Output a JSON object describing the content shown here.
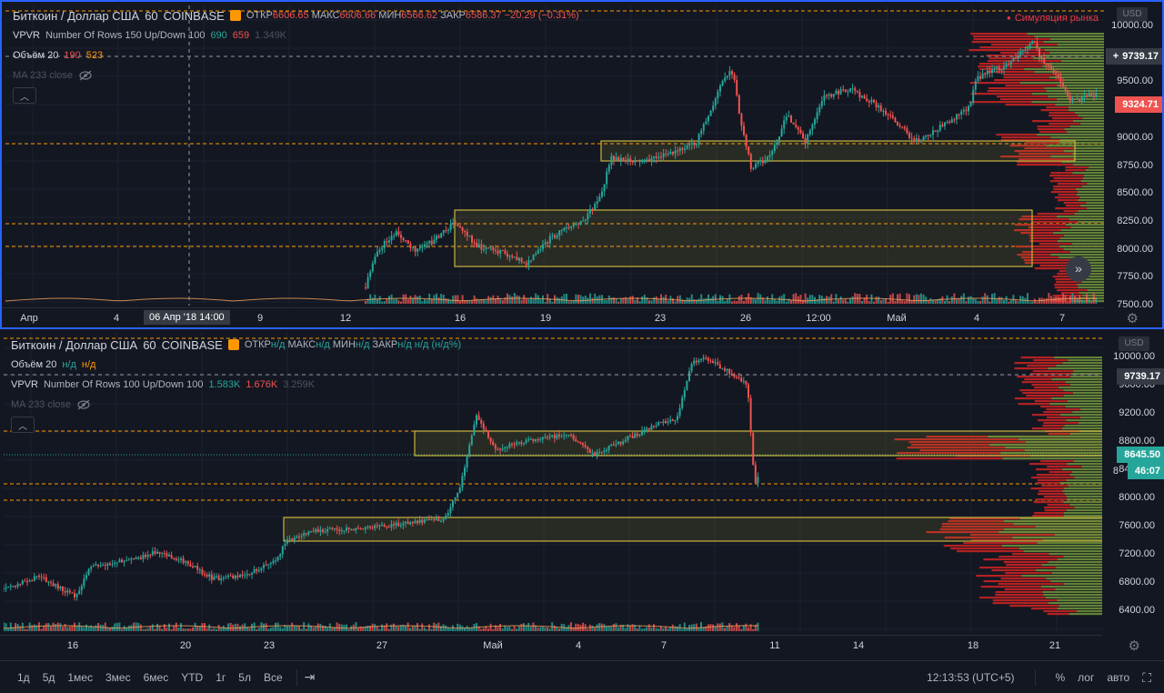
{
  "colors": {
    "bg": "#131722",
    "up": "#26a69a",
    "down": "#ef5350",
    "vp_up": "#6b8e3a",
    "vp_down": "#b22222",
    "box": "#c9b53c",
    "dashed": "#ff9800",
    "grid": "#1e222d",
    "accent": "#2962ff"
  },
  "pane1": {
    "symbol": "Биткоин / Доллар США",
    "interval": "60",
    "exchange": "COINBASE",
    "ohlc": {
      "o_label": "ОТКР",
      "o": "6606.65",
      "h_label": "МАКС",
      "h": "6606.66",
      "l_label": "МИН",
      "l": "6566.62",
      "c_label": "ЗАКР",
      "c": "6586.37",
      "change": "−20.29 (−0.31%)"
    },
    "sim_label": "Симуляция рынка",
    "vpvr": {
      "name": "VPVR",
      "params": "Number Of Rows 150 Up/Down 100",
      "up": "690",
      "down": "659",
      "total": "1.349K"
    },
    "volume": {
      "name": "Объём 20",
      "v1": "190",
      "v2": "523"
    },
    "ma": {
      "name": "MA 233 close"
    },
    "currency": "USD",
    "price_ticks": [
      "10000.00",
      "9750.00",
      "9500.00",
      "9250.00",
      "9000.00",
      "8750.00",
      "8500.00",
      "8250.00",
      "8000.00",
      "7750.00",
      "7500.00"
    ],
    "tags": {
      "crosshair": "9739.17",
      "last": "9324.71"
    },
    "time_labels": [
      "Апр",
      "4",
      "9",
      "12",
      "16",
      "19",
      "23",
      "26",
      "12:00",
      "Май",
      "4",
      "7"
    ],
    "crosshair_time": "06 Апр '18   14:00",
    "icons": {
      "scroll": "double-chevron-right-icon",
      "eye": "eye-off-icon",
      "collapse": "chevron-up-icon",
      "settings": "gear-icon"
    }
  },
  "pane2": {
    "symbol": "Биткоин / Доллар США",
    "interval": "60",
    "exchange": "COINBASE",
    "ohlc": {
      "o_label": "ОТКР",
      "o": "н/д",
      "h_label": "МАКС",
      "h": "н/д",
      "l_label": "МИН",
      "l": "н/д",
      "c_label": "ЗАКР",
      "c": "н/д",
      "change": "н/д (н/д%)"
    },
    "volume": {
      "name": "Объём 20",
      "v1": "н/д",
      "v2": "н/д"
    },
    "vpvr": {
      "name": "VPVR",
      "params": "Number Of Rows 100 Up/Down 100",
      "up": "1.583K",
      "down": "1.676K",
      "total": "3.259K"
    },
    "ma": {
      "name": "MA 233 close"
    },
    "currency": "USD",
    "price_ticks": [
      "10000.00",
      "9600.00",
      "9200.00",
      "8800.00",
      "8400.00",
      "8000.00",
      "7600.00",
      "7200.00",
      "6800.00",
      "6400.00"
    ],
    "tags": {
      "crosshair": "9739.17",
      "last": "8645.50",
      "countdown_prefix": "8",
      "countdown": "46:07"
    },
    "time_labels": [
      "16",
      "20",
      "23",
      "27",
      "Май",
      "4",
      "7",
      "11",
      "14",
      "18",
      "21"
    ]
  },
  "bottom": {
    "ranges": [
      "1д",
      "5д",
      "1мес",
      "3мес",
      "6мес",
      "YTD",
      "1г",
      "5л",
      "Все"
    ],
    "time": "12:13:53 (UTC+5)",
    "percent": "%",
    "log": "лог",
    "auto": "авто",
    "icons": {
      "goto": "calendar-goto-icon",
      "fullscreen": "fullscreen-icon"
    }
  }
}
